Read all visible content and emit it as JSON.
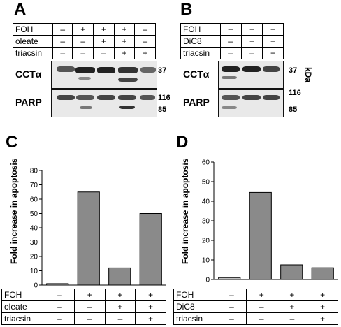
{
  "panel_labels": {
    "A": "A",
    "B": "B",
    "C": "C",
    "D": "D"
  },
  "panel_A": {
    "rows": [
      {
        "label": "FOH",
        "cells": [
          "–",
          "+",
          "+",
          "+",
          "–"
        ]
      },
      {
        "label": "oleate",
        "cells": [
          "–",
          "–",
          "+",
          "+",
          "–"
        ]
      },
      {
        "label": "triacsin",
        "cells": [
          "–",
          "–",
          "–",
          "+",
          "+"
        ]
      }
    ],
    "blot_labels": {
      "top": "CCTα",
      "bottom": "PARP"
    },
    "mw_labels": {
      "m37": "37",
      "m116": "116",
      "m85": "85"
    }
  },
  "panel_B": {
    "rows": [
      {
        "label": "FOH",
        "cells": [
          "+",
          "+",
          "+"
        ]
      },
      {
        "label": "DiC8",
        "cells": [
          "–",
          "+",
          "+"
        ]
      },
      {
        "label": "triacsin",
        "cells": [
          "–",
          "–",
          "+"
        ]
      }
    ],
    "blot_labels": {
      "top": "CCTα",
      "bottom": "PARP"
    },
    "mw_labels": {
      "m37": "37",
      "m116": "116",
      "m85": "85"
    },
    "unit": "kDa"
  },
  "chart_data": [
    {
      "panel": "C",
      "type": "bar",
      "ylabel": "Fold increase in apoptosis",
      "ylim": [
        0,
        80
      ],
      "yticks": [
        0,
        10,
        20,
        30,
        40,
        50,
        60,
        70,
        80
      ],
      "values": [
        1,
        65,
        12,
        50
      ],
      "bar_color": "#8a8a8a",
      "first_bar_color": "#c0c0c0",
      "grid": false,
      "conditions": [
        {
          "label": "FOH",
          "cells": [
            "–",
            "+",
            "+",
            "+"
          ]
        },
        {
          "label": "oleate",
          "cells": [
            "–",
            "–",
            "+",
            "+"
          ]
        },
        {
          "label": "triacsin",
          "cells": [
            "–",
            "–",
            "–",
            "+"
          ]
        }
      ]
    },
    {
      "panel": "D",
      "type": "bar",
      "ylabel": "Fold increase in apoptosis",
      "ylim": [
        0,
        60
      ],
      "yticks": [
        0,
        10,
        20,
        30,
        40,
        50,
        60
      ],
      "values": [
        1,
        44.5,
        7.5,
        6
      ],
      "bar_color": "#8a8a8a",
      "first_bar_color": "#c0c0c0",
      "grid": false,
      "conditions": [
        {
          "label": "FOH",
          "cells": [
            "–",
            "+",
            "+",
            "+"
          ]
        },
        {
          "label": "DiC8",
          "cells": [
            "–",
            "–",
            "+",
            "+"
          ]
        },
        {
          "label": "triacsin",
          "cells": [
            "–",
            "–",
            "–",
            "+"
          ]
        }
      ]
    }
  ]
}
